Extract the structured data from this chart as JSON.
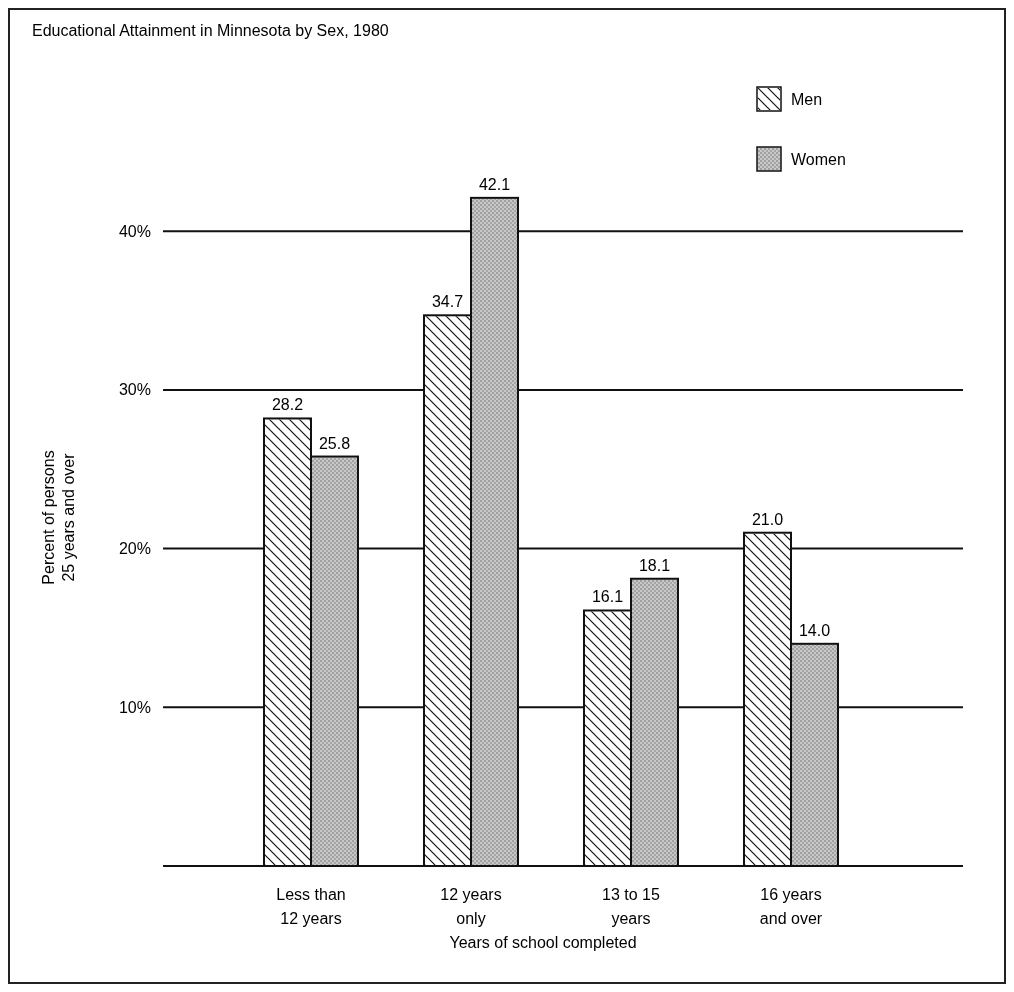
{
  "chart_data": {
    "type": "bar",
    "title": "Educational Attainment in Minnesota by Sex, 1980",
    "xlabel": "Years of school completed",
    "ylabel": "Percent of persons\n25 years and over",
    "categories": [
      "Less than\n12 years",
      "12 years\nonly",
      "13 to 15\nyears",
      "16 years\nand over"
    ],
    "series": [
      {
        "name": "Men",
        "color": "#ffffff",
        "values": [
          28.2,
          34.7,
          16.1,
          21.0
        ],
        "value_labels": [
          "28.2",
          "34.7",
          "16.1",
          "21.0"
        ]
      },
      {
        "name": "Women",
        "color": "#c8c8c8",
        "values": [
          25.8,
          42.1,
          18.1,
          14.0
        ],
        "value_labels": [
          "25.8",
          "42.1",
          "18.1",
          "14.0"
        ]
      }
    ],
    "ylim": [
      0,
      54
    ],
    "yticks": [
      {
        "value": 10,
        "label": "10%"
      },
      {
        "value": 20,
        "label": "20%"
      },
      {
        "value": 30,
        "label": "30%"
      },
      {
        "value": 40,
        "label": "40%"
      }
    ],
    "grid": "y",
    "legend": "top right"
  }
}
